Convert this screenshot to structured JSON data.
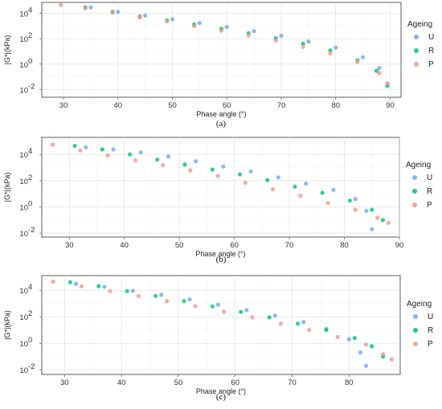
{
  "figure": {
    "legend_title": "Ageing",
    "legend": [
      {
        "key": "U",
        "label": "U",
        "color": "#6fa8f5"
      },
      {
        "key": "R",
        "label": "R",
        "color": "#00c277"
      },
      {
        "key": "P",
        "label": "P",
        "color": "#f7958a"
      }
    ]
  },
  "chart_data": [
    {
      "type": "scatter",
      "caption": "(a)",
      "xlabel": "Phase angle (°)",
      "ylabel": "|G*|(kPa)",
      "xlim": [
        26,
        92
      ],
      "ylim_log10": [
        -2.6,
        4.85
      ],
      "y_scale": "log",
      "x_ticks": [
        30,
        40,
        50,
        60,
        70,
        80,
        90
      ],
      "y_ticks": [
        {
          "label": "10",
          "sup": "4",
          "log": 4
        },
        {
          "label": "10",
          "sup": "2",
          "log": 2
        },
        {
          "label": "10",
          "sup": "0",
          "log": 0
        },
        {
          "label": "10",
          "sup": "-2",
          "log": -2
        }
      ],
      "grid": true,
      "legend_position": "right",
      "series": [
        {
          "name": "U",
          "color": "#6fa8f5",
          "x": [
            35,
            40,
            45,
            50,
            55,
            60,
            65,
            70,
            75,
            80,
            85,
            88,
            89.5
          ],
          "y": [
            29000,
            13000,
            6500,
            3300,
            1700,
            830,
            390,
            170,
            60,
            20,
            3.5,
            0.5,
            0.03
          ]
        },
        {
          "name": "R",
          "color": "#00c277",
          "x": [
            34,
            39,
            44,
            49,
            54,
            59,
            64,
            69,
            74,
            79,
            84,
            87.5,
            89.5
          ],
          "y": [
            29000,
            13000,
            5700,
            2700,
            1300,
            600,
            270,
            110,
            40,
            12,
            2,
            0.3,
            0.02
          ]
        },
        {
          "name": "P",
          "color": "#f7958a",
          "x": [
            29.5,
            34,
            39,
            44,
            49,
            54,
            59,
            64,
            69,
            74,
            79,
            84,
            88,
            89.5
          ],
          "y": [
            45000,
            24000,
            11000,
            4800,
            2300,
            1000,
            430,
            180,
            70,
            23,
            7,
            1.5,
            0.2,
            0.03
          ]
        }
      ]
    },
    {
      "type": "scatter",
      "caption": "(b)",
      "xlabel": "Phase angle (°)",
      "ylabel": "|G*|(kPa)",
      "xlim": [
        25,
        90
      ],
      "ylim_log10": [
        -2.3,
        5.3
      ],
      "y_scale": "log",
      "x_ticks": [
        30,
        40,
        50,
        60,
        70,
        80,
        90
      ],
      "y_ticks": [
        {
          "label": "10",
          "sup": "4",
          "log": 4
        },
        {
          "label": "10",
          "sup": "2",
          "log": 2
        },
        {
          "label": "10",
          "sup": "0",
          "log": 0
        },
        {
          "label": "10",
          "sup": "-2",
          "log": -2
        }
      ],
      "grid": true,
      "legend_position": "right",
      "series": [
        {
          "name": "U",
          "color": "#6fa8f5",
          "x": [
            33,
            38,
            43,
            48,
            53,
            58,
            63,
            68,
            73,
            78,
            82,
            84,
            85
          ],
          "y": [
            35000,
            24000,
            14000,
            7000,
            3000,
            1200,
            500,
            180,
            60,
            20,
            4,
            0.5,
            0.02
          ]
        },
        {
          "name": "R",
          "color": "#00c277",
          "x": [
            31,
            36,
            41,
            46,
            51,
            56,
            61,
            66,
            71,
            76,
            81,
            85,
            87
          ],
          "y": [
            45000,
            24000,
            10000,
            4000,
            1700,
            700,
            300,
            110,
            35,
            12,
            3,
            0.6,
            0.1
          ]
        },
        {
          "name": "P",
          "color": "#f7958a",
          "x": [
            27,
            32,
            37,
            42,
            47,
            52,
            57,
            62,
            67,
            72,
            77,
            82,
            86,
            88
          ],
          "y": [
            55000,
            20000,
            8500,
            3500,
            1500,
            600,
            230,
            70,
            22,
            7,
            2,
            0.6,
            0.15,
            0.06
          ]
        }
      ]
    },
    {
      "type": "scatter",
      "caption": "(c)",
      "xlabel": "Phase angle (°)",
      "ylabel": "|G*|(kPa)",
      "xlim": [
        26,
        89
      ],
      "ylim_log10": [
        -2.35,
        5.1
      ],
      "y_scale": "log",
      "x_ticks": [
        30,
        40,
        50,
        60,
        70,
        80
      ],
      "y_ticks": [
        {
          "label": "10",
          "sup": "4",
          "log": 4
        },
        {
          "label": "10",
          "sup": "2",
          "log": 2
        },
        {
          "label": "10",
          "sup": "0",
          "log": 0
        },
        {
          "label": "10",
          "sup": "-2",
          "log": -2
        }
      ],
      "grid": true,
      "legend_position": "right",
      "series": [
        {
          "name": "U",
          "color": "#6fa8f5",
          "x": [
            32,
            37,
            42,
            47,
            52,
            57,
            62,
            67,
            72,
            76,
            80,
            82,
            83
          ],
          "y": [
            30000,
            18000,
            9000,
            4500,
            2000,
            800,
            320,
            120,
            40,
            12,
            2,
            0.2,
            0.02
          ]
        },
        {
          "name": "R",
          "color": "#00c277",
          "x": [
            31,
            36,
            41,
            46,
            51,
            56,
            61,
            66,
            71,
            76,
            81,
            84,
            86
          ],
          "y": [
            40000,
            20000,
            8500,
            3700,
            1500,
            600,
            230,
            90,
            30,
            10,
            2.5,
            0.6,
            0.1
          ]
        },
        {
          "name": "P",
          "color": "#f7958a",
          "x": [
            28,
            33,
            38,
            43,
            48,
            53,
            58,
            63,
            68,
            73,
            78,
            83,
            86,
            87.5
          ],
          "y": [
            45000,
            20000,
            8500,
            3600,
            1500,
            620,
            240,
            90,
            30,
            10,
            3,
            0.8,
            0.15,
            0.06
          ]
        }
      ]
    }
  ]
}
